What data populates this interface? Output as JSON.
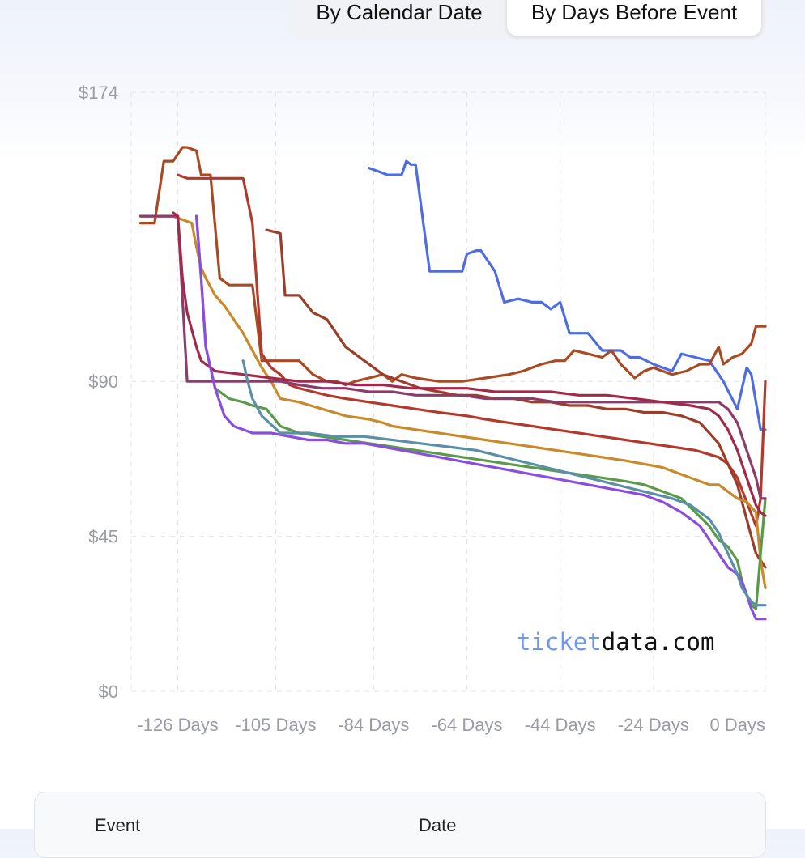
{
  "tabs": [
    {
      "label": "By Calendar Date",
      "active": false
    },
    {
      "label": "By Days Before Event",
      "active": true
    }
  ],
  "watermark": {
    "part1": "ticket",
    "part2": "data.com"
  },
  "table": {
    "headers": [
      "Event",
      "Date"
    ]
  },
  "chart_data": {
    "type": "line",
    "title": "",
    "xlabel": "",
    "ylabel": "",
    "y_unit": "$",
    "ylim": [
      0,
      174
    ],
    "xlim": [
      -136,
      0
    ],
    "y_ticks": [
      {
        "value": 174,
        "label": "$174"
      },
      {
        "value": 90,
        "label": "$90"
      },
      {
        "value": 45,
        "label": "$45"
      },
      {
        "value": 0,
        "label": "$0"
      }
    ],
    "x_ticks": [
      {
        "value": -126,
        "label": "-126 Days"
      },
      {
        "value": -105,
        "label": "-105 Days"
      },
      {
        "value": -84,
        "label": "-84 Days"
      },
      {
        "value": -64,
        "label": "-64 Days"
      },
      {
        "value": -44,
        "label": "-44 Days"
      },
      {
        "value": -24,
        "label": "-24 Days"
      },
      {
        "value": 0,
        "label": "0 Days"
      }
    ],
    "grid": true,
    "series": [
      {
        "color": "#4f6ddf",
        "x": [
          -85,
          -83,
          -81,
          -78,
          -77,
          -76,
          -75,
          -72,
          -71,
          -68,
          -65,
          -64,
          -62,
          -61,
          -58,
          -56,
          -53,
          -50,
          -48,
          -46,
          -44,
          -42,
          -40,
          -38,
          -35,
          -31,
          -29,
          -27,
          -24,
          -22,
          -20,
          -18,
          -15,
          -12,
          -9,
          -6,
          -4,
          -3,
          -1,
          0
        ],
        "y": [
          152,
          151,
          150,
          150,
          154,
          153,
          153,
          122,
          122,
          122,
          122,
          127,
          128,
          128,
          122,
          113,
          114,
          113,
          113,
          111,
          113,
          104,
          104,
          104,
          99,
          99,
          97,
          97,
          95,
          94,
          93,
          98,
          97,
          96,
          90,
          82,
          94,
          92,
          76,
          76
        ]
      },
      {
        "color": "#a84a22",
        "x": [
          -134,
          -131,
          -129,
          -127,
          -125,
          -124,
          -122,
          -121,
          -119,
          -117,
          -115,
          -110,
          -108,
          -105,
          -103,
          -100,
          -97,
          -94,
          -92,
          -90,
          -88,
          -85,
          -82,
          -80,
          -78,
          -75,
          -70,
          -65,
          -60,
          -55,
          -52,
          -48,
          -45,
          -43,
          -41,
          -38,
          -35,
          -33,
          -31,
          -28,
          -26,
          -24,
          -20,
          -17,
          -14,
          -12,
          -10,
          -9,
          -7,
          -5,
          -3,
          -2,
          0
        ],
        "y": [
          136,
          136,
          154,
          154,
          158,
          158,
          157,
          150,
          150,
          120,
          118,
          118,
          96,
          96,
          96,
          96,
          92,
          90,
          90,
          89,
          90,
          91,
          92,
          90,
          92,
          91,
          90,
          90,
          91,
          92,
          93,
          95,
          96,
          96,
          99,
          98,
          97,
          99,
          95,
          91,
          93,
          94,
          92,
          93,
          95,
          95,
          100,
          95,
          97,
          98,
          101,
          106,
          106
        ]
      },
      {
        "color": "#b23a2c",
        "x": [
          -126,
          -124,
          -118,
          -112,
          -110,
          -108,
          -106,
          -104,
          -102,
          -100,
          -97,
          -94,
          -90,
          -85,
          -80,
          -75,
          -70,
          -64,
          -60,
          -55,
          -50,
          -45,
          -40,
          -35,
          -30,
          -25,
          -20,
          -15,
          -10,
          -8,
          -6,
          -4,
          -2,
          -1,
          0
        ],
        "y": [
          150,
          149,
          149,
          149,
          136,
          98,
          94,
          92,
          89,
          88,
          87,
          86,
          85,
          84,
          83,
          82,
          81,
          80,
          79,
          78,
          77,
          76,
          75,
          74,
          73,
          72,
          71,
          70,
          68,
          66,
          62,
          55,
          48,
          56,
          90
        ]
      },
      {
        "color": "#9a3e2a",
        "x": [
          -107,
          -104,
          -103,
          -100,
          -97,
          -94,
          -90,
          -86,
          -82,
          -78,
          -74,
          -70,
          -66,
          -62,
          -58,
          -54,
          -50,
          -46,
          -42,
          -38,
          -34,
          -30,
          -26,
          -22,
          -18,
          -14,
          -10,
          -8,
          -6,
          -4,
          -2,
          0
        ],
        "y": [
          134,
          133,
          115,
          115,
          110,
          108,
          100,
          96,
          92,
          90,
          88,
          87,
          86,
          86,
          85,
          85,
          84,
          84,
          83,
          83,
          82,
          82,
          81,
          81,
          80,
          78,
          72,
          66,
          60,
          50,
          40,
          36
        ]
      },
      {
        "color": "#c88a2a",
        "x": [
          -134,
          -131,
          -130,
          -127,
          -125,
          -123,
          -122,
          -121,
          -120,
          -118,
          -116,
          -114,
          -112,
          -110,
          -108,
          -106,
          -104,
          -100,
          -95,
          -90,
          -85,
          -82,
          -80,
          -75,
          -70,
          -65,
          -60,
          -55,
          -50,
          -45,
          -40,
          -35,
          -30,
          -26,
          -22,
          -18,
          -14,
          -12,
          -10,
          -8,
          -6,
          -4,
          -2,
          -1,
          0
        ],
        "y": [
          138,
          138,
          138,
          138,
          137,
          136,
          129,
          123,
          120,
          115,
          112,
          108,
          104,
          99,
          94,
          90,
          85,
          84,
          82,
          80,
          79,
          78,
          77,
          76,
          75,
          74,
          73,
          72,
          71,
          70,
          69,
          68,
          67,
          66,
          65,
          63,
          61,
          60,
          60,
          58,
          56,
          55,
          52,
          38,
          30
        ]
      },
      {
        "color": "#5a9a48",
        "x": [
          -122,
          -121,
          -120,
          -118,
          -115,
          -112,
          -110,
          -107,
          -104,
          -100,
          -95,
          -90,
          -85,
          -80,
          -75,
          -70,
          -65,
          -60,
          -55,
          -50,
          -45,
          -40,
          -35,
          -30,
          -26,
          -22,
          -18,
          -15,
          -12,
          -10,
          -8,
          -6,
          -5,
          -4,
          -3,
          -2,
          -1,
          0
        ],
        "y": [
          138,
          120,
          100,
          88,
          85,
          84,
          83,
          82,
          77,
          75,
          74,
          73,
          72,
          71,
          70,
          69,
          68,
          67,
          66,
          65,
          64,
          63,
          62,
          61,
          60,
          58,
          56,
          52,
          48,
          44,
          42,
          38,
          32,
          28,
          25,
          24,
          40,
          56
        ]
      },
      {
        "color": "#8a3d6a",
        "x": [
          -134,
          -126,
          -124,
          -118,
          -110,
          -104,
          -100,
          -95,
          -90,
          -85,
          -80,
          -75,
          -70,
          -65,
          -60,
          -55,
          -50,
          -45,
          -40,
          -35,
          -30,
          -25,
          -20,
          -16,
          -12,
          -10,
          -8,
          -6,
          -4,
          -2,
          -1,
          0
        ],
        "y": [
          138,
          138,
          90,
          90,
          90,
          90,
          89,
          88,
          88,
          87,
          87,
          86,
          86,
          86,
          85,
          85,
          85,
          84,
          84,
          84,
          84,
          84,
          84,
          84,
          84,
          84,
          82,
          78,
          70,
          62,
          56,
          56
        ]
      },
      {
        "color": "#a02a4a",
        "x": [
          -127,
          -126,
          -125,
          -124,
          -123,
          -122,
          -121,
          -118,
          -112,
          -106,
          -100,
          -94,
          -88,
          -82,
          -76,
          -70,
          -64,
          -58,
          -52,
          -46,
          -40,
          -34,
          -28,
          -22,
          -16,
          -12,
          -10,
          -8,
          -6,
          -4,
          -2,
          -1,
          0
        ],
        "y": [
          139,
          138,
          120,
          110,
          105,
          100,
          96,
          93,
          92,
          91,
          90,
          90,
          89,
          89,
          88,
          88,
          88,
          87,
          87,
          87,
          86,
          86,
          85,
          84,
          83,
          82,
          80,
          76,
          70,
          62,
          54,
          52,
          51
        ]
      },
      {
        "color": "#8a4de0",
        "x": [
          -122,
          -121,
          -120,
          -118,
          -116,
          -114,
          -112,
          -110,
          -106,
          -102,
          -98,
          -94,
          -90,
          -86,
          -82,
          -78,
          -74,
          -70,
          -66,
          -62,
          -58,
          -54,
          -50,
          -46,
          -42,
          -38,
          -34,
          -30,
          -26,
          -22,
          -18,
          -14,
          -12,
          -10,
          -8,
          -6,
          -5,
          -4,
          -3,
          -2,
          -1,
          0
        ],
        "y": [
          138,
          120,
          100,
          88,
          80,
          77,
          76,
          75,
          75,
          74,
          73,
          73,
          72,
          72,
          71,
          70,
          69,
          68,
          67,
          66,
          65,
          64,
          63,
          62,
          61,
          60,
          59,
          58,
          57,
          55,
          52,
          48,
          44,
          40,
          36,
          34,
          32,
          28,
          24,
          21,
          21,
          21
        ]
      },
      {
        "color": "#5b8fa8",
        "x": [
          -112,
          -111,
          -110,
          -108,
          -104,
          -98,
          -92,
          -86,
          -80,
          -74,
          -68,
          -62,
          -56,
          -50,
          -44,
          -38,
          -32,
          -26,
          -20,
          -16,
          -12,
          -10,
          -8,
          -6,
          -5,
          -4,
          -3,
          -2,
          -1,
          0
        ],
        "y": [
          96,
          90,
          85,
          80,
          75,
          75,
          74,
          74,
          73,
          72,
          71,
          70,
          68,
          66,
          64,
          62,
          60,
          58,
          56,
          54,
          50,
          46,
          40,
          34,
          30,
          28,
          26,
          25,
          25,
          25
        ]
      }
    ]
  }
}
